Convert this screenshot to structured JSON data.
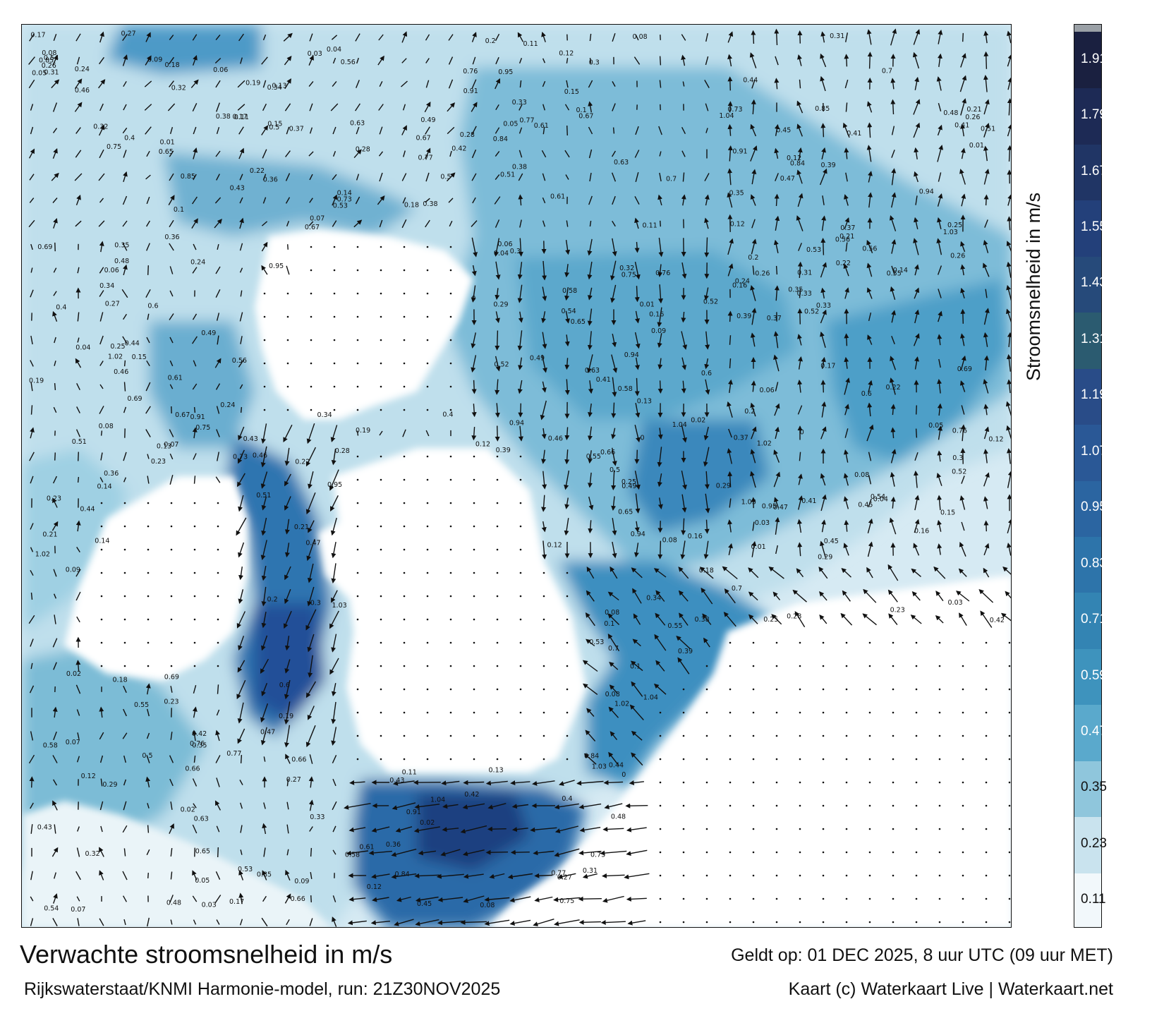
{
  "title": "Verwachte stroomsnelheid in m/s",
  "subtitle": "Rijkswaterstaat/KNMI Harmonie-model, run: 21Z30NOV2025",
  "valid_time": "Geldt op: 01 DEC 2025, 8 uur UTC (09 uur MET)",
  "credit": "Kaart (c) Waterkaart Live | Waterkaart.net",
  "colorbar": {
    "title": "Stroomsnelheid in m/s",
    "ticks": [
      "0.11",
      "0.23",
      "0.35",
      "0.47",
      "0.59",
      "0.71",
      "0.83",
      "0.95",
      "1.07",
      "1.19",
      "1.31",
      "1.43",
      "1.55",
      "1.67",
      "1.79",
      "1.91"
    ],
    "colors": [
      "#f2f8fb",
      "#c9e3ee",
      "#8fc6dc",
      "#5aa9cc",
      "#3e93bd",
      "#3384b3",
      "#2d74aa",
      "#2b65a1",
      "#2a5896",
      "#294c88",
      "#2b5b70",
      "#264a7a",
      "#23407a",
      "#203565",
      "#1d2a55",
      "#1a2040"
    ]
  },
  "current_labels": [
    {
      "t": "0.19"
    },
    {
      "t": "0.08"
    },
    {
      "t": "0.18"
    },
    {
      "t": "0.07"
    },
    {
      "t": "0.05"
    },
    {
      "t": "0.08"
    },
    {
      "t": "0.1"
    },
    {
      "t": "0.13"
    },
    {
      "t": "0.12"
    },
    {
      "t": "0.09"
    },
    {
      "t": "0.15"
    },
    {
      "t": "0.16"
    },
    {
      "t": "0.12"
    },
    {
      "t": "0.17"
    },
    {
      "t": "0.14"
    },
    {
      "t": "0.26"
    },
    {
      "t": "0.24"
    },
    {
      "t": "0.25"
    },
    {
      "t": "0.23"
    },
    {
      "t": "0.33"
    },
    {
      "t": "0.34"
    },
    {
      "t": "0.36"
    },
    {
      "t": "0.35"
    },
    {
      "t": "0.29"
    },
    {
      "t": "0.27"
    },
    {
      "t": "0.3"
    },
    {
      "t": "0.31"
    },
    {
      "t": "0.37"
    },
    {
      "t": "0.38"
    },
    {
      "t": "0.41"
    },
    {
      "t": "0.39"
    },
    {
      "t": "0.52"
    },
    {
      "t": "0.46"
    },
    {
      "t": "0.48"
    },
    {
      "t": "0.43"
    },
    {
      "t": "0.42"
    },
    {
      "t": "0.44"
    },
    {
      "t": "0.47"
    },
    {
      "t": "0.51"
    },
    {
      "t": "0.53"
    },
    {
      "t": "0.58"
    },
    {
      "t": "0.45"
    },
    {
      "t": "0.49"
    },
    {
      "t": "0.5"
    },
    {
      "t": "0.56"
    },
    {
      "t": "0.55"
    },
    {
      "t": "0.54"
    },
    {
      "t": "0.61"
    },
    {
      "t": "0.66"
    },
    {
      "t": "0.69"
    },
    {
      "t": "0.75"
    },
    {
      "t": "0.77"
    },
    {
      "t": "0.76"
    },
    {
      "t": "0.85"
    },
    {
      "t": "0.94"
    },
    {
      "t": "0.95"
    },
    {
      "t": "1.04"
    },
    {
      "t": "1.03"
    },
    {
      "t": "1.02"
    },
    {
      "t": "0.91"
    },
    {
      "t": "0.84"
    },
    {
      "t": "0.6"
    },
    {
      "t": "0.2"
    },
    {
      "t": "0.21"
    },
    {
      "t": "0.22"
    },
    {
      "t": "0.11"
    },
    {
      "t": "0.06"
    },
    {
      "t": "0.04"
    },
    {
      "t": "0.03"
    },
    {
      "t": "0.02"
    },
    {
      "t": "0.01"
    },
    {
      "t": "0"
    },
    {
      "t": "0.28"
    },
    {
      "t": "0.32"
    },
    {
      "t": "0.4"
    },
    {
      "t": "0.65"
    },
    {
      "t": "0.7"
    },
    {
      "t": "0.73"
    },
    {
      "t": "0.63"
    },
    {
      "t": "0.67"
    }
  ]
}
